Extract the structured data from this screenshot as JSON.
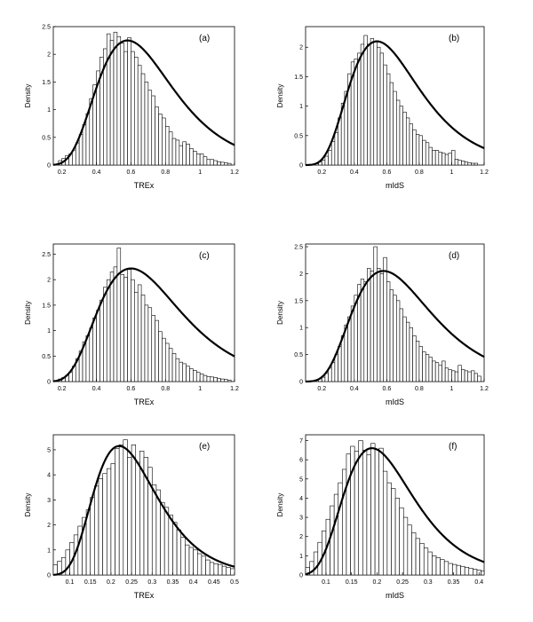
{
  "chart_data": [
    {
      "panel": "(a)",
      "type": "bar",
      "overlay": "fitted density curve",
      "xlabel": "TREx",
      "ylabel": "Density",
      "xlim": [
        0.15,
        1.2
      ],
      "ylim": [
        0,
        2.5
      ],
      "xticks": [
        "0.2",
        "0.4",
        "0.6",
        "0.8",
        "1",
        "1.2"
      ],
      "yticks": [
        "0",
        "0.5",
        "1",
        "1.5",
        "2",
        "2.5"
      ],
      "bin_start": 0.18,
      "bin_width": 0.02,
      "values": [
        0.08,
        0.12,
        0.17,
        0.2,
        0.27,
        0.4,
        0.55,
        0.73,
        0.93,
        1.2,
        1.45,
        1.7,
        1.95,
        2.1,
        2.37,
        2.25,
        2.4,
        2.32,
        2.2,
        2.05,
        2.3,
        2.05,
        1.95,
        1.8,
        1.65,
        1.5,
        1.35,
        1.25,
        1.05,
        0.92,
        0.85,
        0.7,
        0.6,
        0.48,
        0.45,
        0.35,
        0.42,
        0.38,
        0.3,
        0.25,
        0.2,
        0.2,
        0.15,
        0.1,
        0.1,
        0.08,
        0.06,
        0.05,
        0.04,
        0.03
      ],
      "curve_mode": 0.58,
      "curve_peak": 2.25,
      "curve_sigma": 0.38
    },
    {
      "panel": "(b)",
      "type": "bar",
      "overlay": "fitted density curve",
      "xlabel": "mIdS",
      "ylabel": "Density",
      "xlim": [
        0.1,
        1.2
      ],
      "ylim": [
        0,
        2.35
      ],
      "xticks": [
        "0.2",
        "0.4",
        "0.6",
        "0.8",
        "1",
        "1.2"
      ],
      "yticks": [
        "0",
        "0.5",
        "1",
        "1.5",
        "2"
      ],
      "bin_start": 0.16,
      "bin_width": 0.02,
      "values": [
        0.02,
        0.05,
        0.08,
        0.15,
        0.25,
        0.4,
        0.55,
        0.8,
        1.05,
        1.25,
        1.55,
        1.75,
        1.8,
        1.9,
        2.05,
        2.2,
        2.05,
        2.15,
        2.1,
        2.0,
        1.9,
        1.7,
        1.55,
        1.4,
        1.25,
        1.1,
        1.0,
        0.9,
        0.8,
        0.7,
        0.6,
        0.52,
        0.5,
        0.42,
        0.38,
        0.3,
        0.25,
        0.25,
        0.22,
        0.2,
        0.18,
        0.2,
        0.25,
        0.1,
        0.08,
        0.07,
        0.05,
        0.04,
        0.03,
        0.03
      ],
      "curve_mode": 0.54,
      "curve_peak": 2.1,
      "curve_sigma": 0.4
    },
    {
      "panel": "(c)",
      "type": "bar",
      "overlay": "fitted density curve",
      "xlabel": "TREx",
      "ylabel": "Density",
      "xlim": [
        0.15,
        1.2
      ],
      "ylim": [
        0,
        2.7
      ],
      "xticks": [
        "0.2",
        "0.4",
        "0.6",
        "0.8",
        "1",
        "1.2"
      ],
      "yticks": [
        "0",
        "0.5",
        "1",
        "1.5",
        "2",
        "2.5"
      ],
      "bin_start": 0.18,
      "bin_width": 0.02,
      "values": [
        0.05,
        0.08,
        0.12,
        0.18,
        0.3,
        0.45,
        0.6,
        0.78,
        0.9,
        1.05,
        1.25,
        1.4,
        1.6,
        1.85,
        2.0,
        2.15,
        2.25,
        2.62,
        2.1,
        2.05,
        2.2,
        2.0,
        1.75,
        1.9,
        1.7,
        1.5,
        1.45,
        1.3,
        1.2,
        0.98,
        0.85,
        0.75,
        0.65,
        0.55,
        0.45,
        0.38,
        0.35,
        0.3,
        0.25,
        0.22,
        0.18,
        0.15,
        0.12,
        0.1,
        0.09,
        0.08,
        0.06,
        0.05,
        0.04,
        0.03
      ],
      "curve_mode": 0.6,
      "curve_peak": 2.22,
      "curve_sigma": 0.4
    },
    {
      "panel": "(d)",
      "type": "bar",
      "overlay": "fitted density curve",
      "xlabel": "mIdS",
      "ylabel": "Density",
      "xlim": [
        0.1,
        1.2
      ],
      "ylim": [
        0,
        2.55
      ],
      "xticks": [
        "0.2",
        "0.4",
        "0.6",
        "0.8",
        "1",
        "1.2"
      ],
      "yticks": [
        "0",
        "0.5",
        "1",
        "1.5",
        "2",
        "2.5"
      ],
      "bin_start": 0.18,
      "bin_width": 0.02,
      "values": [
        0.05,
        0.08,
        0.15,
        0.25,
        0.35,
        0.5,
        0.65,
        0.85,
        1.05,
        1.2,
        1.4,
        1.6,
        1.8,
        1.9,
        1.85,
        2.1,
        2.05,
        2.5,
        2.1,
        2.0,
        2.3,
        1.85,
        1.7,
        1.6,
        1.5,
        1.35,
        1.2,
        1.1,
        1.0,
        0.85,
        0.75,
        0.65,
        0.55,
        0.5,
        0.45,
        0.38,
        0.35,
        0.3,
        0.38,
        0.25,
        0.22,
        0.2,
        0.18,
        0.3,
        0.22,
        0.2,
        0.18,
        0.2,
        0.15,
        0.1
      ],
      "curve_mode": 0.58,
      "curve_peak": 2.05,
      "curve_sigma": 0.42
    },
    {
      "panel": "(e)",
      "type": "bar",
      "overlay": "fitted density curve",
      "xlabel": "TREx",
      "ylabel": "Density",
      "xlim": [
        0.06,
        0.5
      ],
      "ylim": [
        0,
        5.6
      ],
      "xticks": [
        "0.1",
        "0.15",
        "0.2",
        "0.25",
        "0.3",
        "0.35",
        "0.4",
        "0.45",
        "0.5"
      ],
      "yticks": [
        "0",
        "1",
        "2",
        "3",
        "4",
        "5"
      ],
      "bin_start": 0.06,
      "bin_width": 0.01,
      "values": [
        0.4,
        0.55,
        0.7,
        1.0,
        1.3,
        1.6,
        1.95,
        2.3,
        2.6,
        3.1,
        3.55,
        3.85,
        4.05,
        4.25,
        4.45,
        5.05,
        5.2,
        5.4,
        4.7,
        5.2,
        4.5,
        4.95,
        4.7,
        4.3,
        3.6,
        3.4,
        2.9,
        2.7,
        2.4,
        2.1,
        1.8,
        1.5,
        1.2,
        1.1,
        1.0,
        0.85,
        0.75,
        0.6,
        0.5,
        0.45,
        0.42,
        0.35,
        0.3,
        0.25
      ],
      "curve_mode": 0.22,
      "curve_peak": 5.15,
      "curve_sigma": 0.35
    },
    {
      "panel": "(f)",
      "type": "bar",
      "overlay": "fitted density curve",
      "xlabel": "mIdS",
      "ylabel": "Density",
      "xlim": [
        0.06,
        0.41
      ],
      "ylim": [
        0,
        7.3
      ],
      "xticks": [
        "0.1",
        "0.15",
        "0.2",
        "0.25",
        "0.3",
        "0.35",
        "0.4"
      ],
      "yticks": [
        "0",
        "1",
        "2",
        "3",
        "4",
        "5",
        "6",
        "7"
      ],
      "bin_start": 0.06,
      "bin_width": 0.008,
      "values": [
        0.4,
        0.7,
        1.2,
        1.7,
        2.3,
        2.9,
        3.6,
        4.2,
        4.8,
        5.5,
        6.3,
        6.7,
        6.45,
        7.0,
        6.5,
        6.25,
        6.85,
        6.55,
        6.6,
        5.4,
        4.8,
        4.5,
        4.0,
        3.5,
        3.0,
        2.6,
        2.2,
        1.9,
        1.65,
        1.4,
        1.2,
        1.0,
        0.9,
        0.8,
        0.7,
        0.6,
        0.55,
        0.5,
        0.45,
        0.4,
        0.35,
        0.3,
        0.25,
        0.2
      ],
      "curve_mode": 0.19,
      "curve_peak": 6.6,
      "curve_sigma": 0.36
    }
  ]
}
